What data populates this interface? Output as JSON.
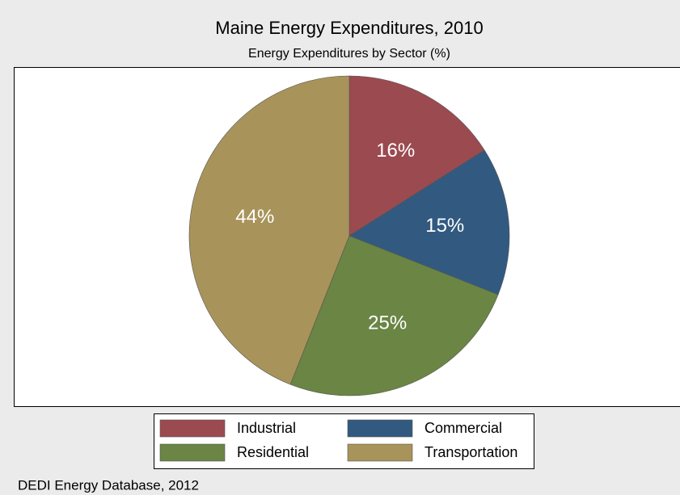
{
  "chart_data": {
    "type": "pie",
    "title": "Maine Energy Expenditures, 2010",
    "subtitle": "Energy Expenditures by Sector (%)",
    "categories": [
      "Industrial",
      "Commercial",
      "Residential",
      "Transportation"
    ],
    "values": [
      16,
      15,
      25,
      44
    ],
    "value_labels": [
      "16%",
      "15%",
      "25%",
      "44%"
    ],
    "colors": [
      "#9b4a50",
      "#325a80",
      "#6a8544",
      "#a8935a"
    ],
    "legend": "bottom",
    "source": "DEDI Energy Database, 2012"
  }
}
